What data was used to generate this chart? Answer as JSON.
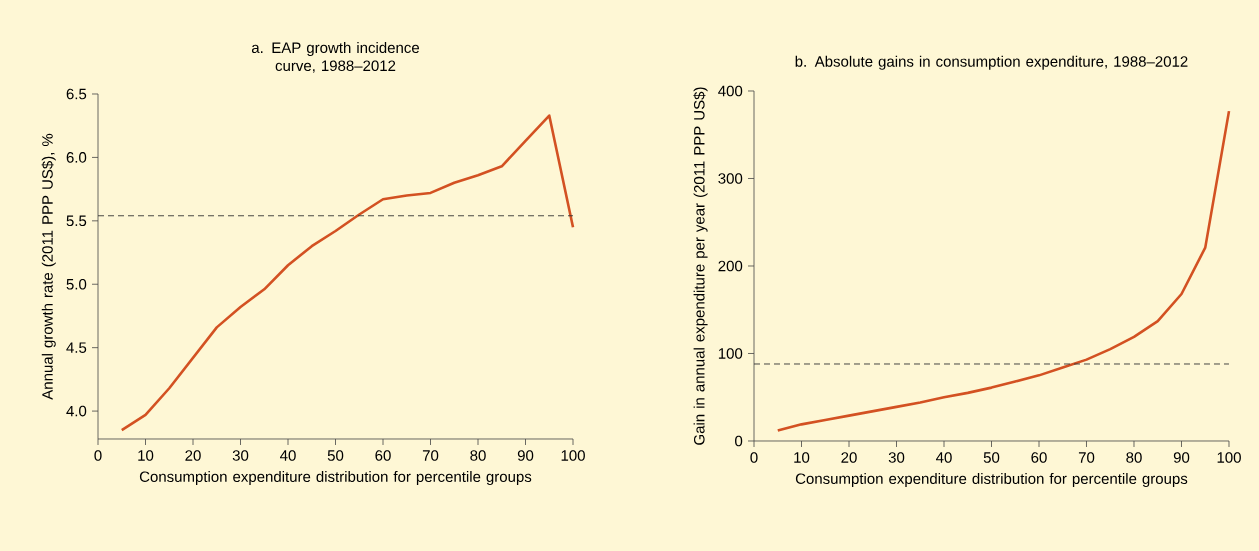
{
  "chart_data": [
    {
      "type": "line",
      "title": "a. EAP growth incidence curve, 1988–2012",
      "xlabel": "Consumption expenditure distribution for percentile groups",
      "ylabel": "Annual growth rate (2011 PPP US$), %",
      "x": [
        5,
        10,
        15,
        20,
        25,
        30,
        35,
        40,
        45,
        50,
        55,
        60,
        65,
        70,
        75,
        80,
        85,
        90,
        95,
        100
      ],
      "series": [
        {
          "color": "#d35122",
          "values": [
            3.85,
            3.97,
            4.18,
            4.42,
            4.66,
            4.82,
            4.96,
            5.15,
            5.3,
            5.42,
            5.55,
            5.67,
            5.7,
            5.72,
            5.8,
            5.86,
            5.93,
            6.13,
            6.33,
            5.45
          ]
        }
      ],
      "xlim": [
        0,
        100
      ],
      "xticks": [
        0,
        10,
        20,
        30,
        40,
        50,
        60,
        70,
        80,
        90,
        100
      ],
      "ylim": [
        3.78,
        6.5
      ],
      "yticks": [
        {
          "value": 4.0,
          "label": "4.0"
        },
        4.5,
        {
          "value": 5.0,
          "label": "5.0"
        },
        5.5,
        {
          "value": 6.0,
          "label": "6.0"
        },
        6.5
      ],
      "ref_lines": [
        {
          "axis": "y",
          "value": 5.54,
          "line_style": "dashed",
          "color": "#333333"
        }
      ]
    },
    {
      "type": "line",
      "title": "b. Absolute gains in consumption expenditure, 1988–2012",
      "xlabel": "Consumption expenditure distribution for percentile groups",
      "ylabel": "Gain in annual expenditure per year (2011 PPP US$)",
      "x": [
        5,
        10,
        15,
        20,
        25,
        30,
        35,
        40,
        45,
        50,
        55,
        60,
        65,
        70,
        75,
        80,
        85,
        90,
        95,
        100
      ],
      "series": [
        {
          "color": "#d35122",
          "values": [
            12,
            19,
            24,
            29,
            34,
            39,
            44,
            50,
            55,
            61,
            68,
            75,
            84,
            93,
            105,
            119,
            137,
            168,
            221,
            377
          ]
        }
      ],
      "xlim": [
        0,
        100
      ],
      "xticks": [
        0,
        10,
        20,
        30,
        40,
        50,
        60,
        70,
        80,
        90,
        100
      ],
      "ylim": [
        0,
        400
      ],
      "yticks": [
        0,
        100,
        200,
        300,
        400
      ],
      "ref_lines": [
        {
          "axis": "y",
          "value": 88,
          "line_style": "dashed",
          "color": "#333333"
        }
      ]
    }
  ]
}
